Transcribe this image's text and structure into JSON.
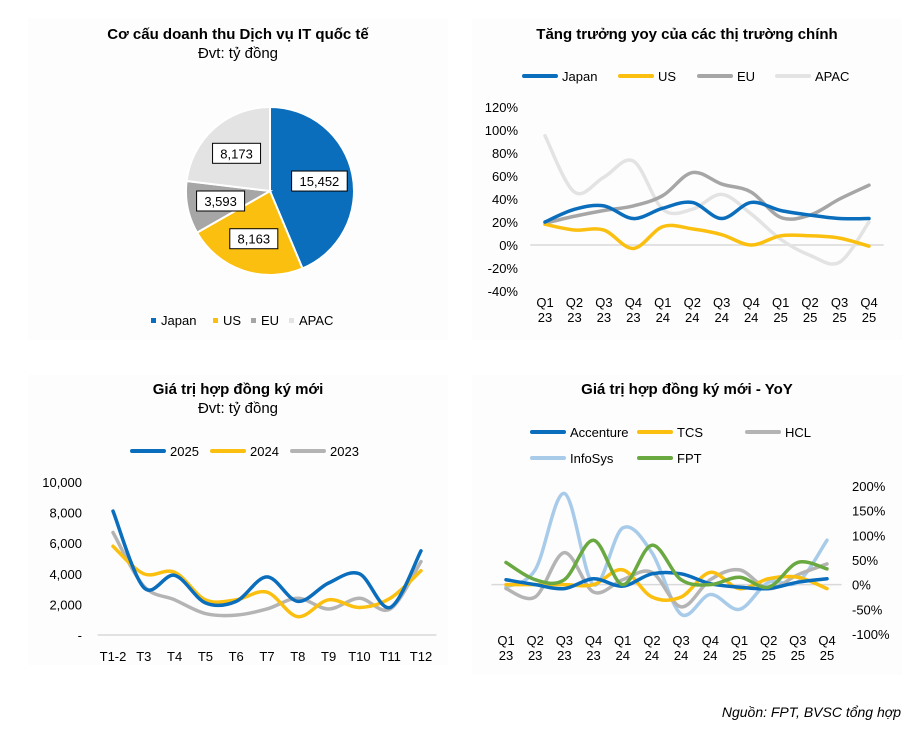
{
  "source": "Nguồn: FPT, BVSC tổng hợp",
  "chart_data": [
    {
      "id": "revenue-structure",
      "type": "pie",
      "title": "Cơ cấu doanh thu Dịch vụ IT quốc tế",
      "subtitle": "Đvt: tỷ đồng",
      "categories": [
        "Japan",
        "US",
        "EU",
        "APAC"
      ],
      "values": [
        15452,
        8163,
        3593,
        8173
      ],
      "labels": [
        "15,452",
        "8,163",
        "3,593",
        "8,173"
      ],
      "colors": [
        "#0a6ebd",
        "#fbbf0f",
        "#a6a6a6",
        "#e3e3e3"
      ],
      "legend": "bottom"
    },
    {
      "id": "market-yoy",
      "type": "line",
      "title": "Tăng trưởng yoy của các thị trường chính",
      "categories": [
        "Q1 23",
        "Q2 23",
        "Q3 23",
        "Q4 23",
        "Q1 24",
        "Q2 24",
        "Q3 24",
        "Q4 24",
        "Q1 25",
        "Q2 25",
        "Q3 25",
        "Q4 25"
      ],
      "x_ticks": [
        [
          "Q1",
          "23"
        ],
        [
          "Q2",
          "23"
        ],
        [
          "Q3",
          "23"
        ],
        [
          "Q4",
          "23"
        ],
        [
          "Q1",
          "24"
        ],
        [
          "Q2",
          "24"
        ],
        [
          "Q3",
          "24"
        ],
        [
          "Q4",
          "24"
        ],
        [
          "Q1",
          "25"
        ],
        [
          "Q2",
          "25"
        ],
        [
          "Q3",
          "25"
        ],
        [
          "Q4",
          "25"
        ]
      ],
      "series": [
        {
          "name": "Japan",
          "color": "#0a6ebd",
          "values": [
            20,
            31,
            34,
            23,
            32,
            37,
            23,
            37,
            30,
            26,
            23,
            23
          ]
        },
        {
          "name": "US",
          "color": "#fbbf0f",
          "values": [
            18,
            13,
            13,
            -3,
            16,
            14,
            9,
            0,
            8,
            8,
            6,
            -1
          ]
        },
        {
          "name": "EU",
          "color": "#a6a6a6",
          "values": [
            19,
            25,
            30,
            34,
            43,
            63,
            53,
            46,
            24,
            26,
            40,
            52
          ]
        },
        {
          "name": "APAC",
          "color": "#e3e3e3",
          "values": [
            95,
            46,
            59,
            73,
            31,
            31,
            44,
            27,
            5,
            -9,
            -15,
            20
          ]
        }
      ],
      "ylim": [
        -40,
        120
      ],
      "y_ticks": [
        120,
        100,
        80,
        60,
        40,
        20,
        0,
        -20,
        -40
      ],
      "y_tick_labels": [
        "120%",
        "100%",
        "80%",
        "60%",
        "40%",
        "20%",
        "0%",
        "-20%",
        "-40%"
      ],
      "ylabel": "",
      "xlabel": "",
      "grid": false,
      "legend": "top"
    },
    {
      "id": "new-contracts",
      "type": "line",
      "title": "Giá trị hợp đồng ký mới",
      "subtitle": "Đvt: tỷ đồng",
      "categories": [
        "T1-2",
        "T3",
        "T4",
        "T5",
        "T6",
        "T7",
        "T8",
        "T9",
        "T10",
        "T11",
        "T12"
      ],
      "series": [
        {
          "name": "2025",
          "color": "#0a6ebd",
          "values": [
            8100,
            3100,
            3900,
            2100,
            2200,
            3800,
            2200,
            3400,
            4000,
            1800,
            5500
          ]
        },
        {
          "name": "2024",
          "color": "#fbbf0f",
          "values": [
            5800,
            4000,
            4100,
            2300,
            2300,
            2800,
            1200,
            2300,
            1800,
            2400,
            4200
          ]
        },
        {
          "name": "2023",
          "color": "#b4b4b4",
          "values": [
            6700,
            3200,
            2300,
            1400,
            1300,
            1700,
            2400,
            1700,
            2400,
            1700,
            4800
          ]
        }
      ],
      "ylim": [
        0,
        10000
      ],
      "y_ticks": [
        10000,
        8000,
        6000,
        4000,
        2000,
        0
      ],
      "y_tick_labels": [
        "10,000",
        "8,000",
        "6,000",
        "4,000",
        "2,000",
        "-"
      ],
      "ylabel": "",
      "xlabel": "",
      "grid": false,
      "legend": "top"
    },
    {
      "id": "new-contracts-yoy",
      "type": "line",
      "title": "Giá trị hợp đồng ký mới - YoY",
      "categories": [
        "Q1 23",
        "Q2 23",
        "Q3 23",
        "Q4 23",
        "Q1 24",
        "Q2 24",
        "Q3 24",
        "Q4 24",
        "Q1 25",
        "Q2 25",
        "Q3 25",
        "Q4 25"
      ],
      "x_ticks": [
        [
          "Q1",
          "23"
        ],
        [
          "Q2",
          "23"
        ],
        [
          "Q3",
          "23"
        ],
        [
          "Q4",
          "23"
        ],
        [
          "Q1",
          "24"
        ],
        [
          "Q2",
          "24"
        ],
        [
          "Q3",
          "24"
        ],
        [
          "Q4",
          "24"
        ],
        [
          "Q1",
          "25"
        ],
        [
          "Q2",
          "25"
        ],
        [
          "Q3",
          "25"
        ],
        [
          "Q4",
          "25"
        ]
      ],
      "series": [
        {
          "name": "Accenture",
          "color": "#0a6ebd",
          "values": [
            10,
            0,
            -8,
            12,
            -3,
            22,
            22,
            2,
            -5,
            -8,
            5,
            12
          ]
        },
        {
          "name": "TCS",
          "color": "#fbbf0f",
          "values": [
            0,
            0,
            0,
            0,
            30,
            -25,
            -25,
            25,
            -8,
            12,
            15,
            -8
          ]
        },
        {
          "name": "HCL",
          "color": "#b4b4b4",
          "values": [
            -8,
            -25,
            65,
            -15,
            10,
            25,
            -45,
            10,
            30,
            -8,
            20,
            42
          ]
        },
        {
          "name": "InfoSys",
          "color": "#a8cbea",
          "values": [
            -5,
            30,
            185,
            0,
            115,
            65,
            -60,
            -20,
            -50,
            5,
            5,
            90
          ]
        },
        {
          "name": "FPT",
          "color": "#6aa842",
          "values": [
            45,
            10,
            10,
            90,
            0,
            80,
            10,
            0,
            15,
            -5,
            45,
            32
          ]
        }
      ],
      "ylim": [
        -100,
        200
      ],
      "y_ticks": [
        200,
        150,
        100,
        50,
        0,
        -50,
        -100
      ],
      "y_tick_labels": [
        "200%",
        "150%",
        "100%",
        "50%",
        "0%",
        "-50%",
        "-100%"
      ],
      "y_axis_side": "right",
      "ylabel": "",
      "xlabel": "",
      "grid": false,
      "legend": "top"
    }
  ]
}
